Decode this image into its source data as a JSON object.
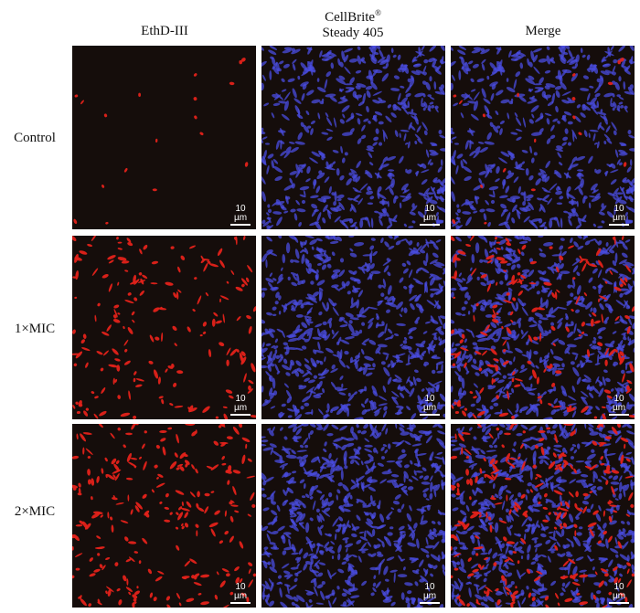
{
  "columns": [
    {
      "id": "ethd",
      "label": "EthD-III"
    },
    {
      "id": "cellbrite",
      "label_line1": "CellBrite",
      "label_sup": "®",
      "label_line2": "Steady 405"
    },
    {
      "id": "merge",
      "label": "Merge"
    }
  ],
  "rows": [
    {
      "label": "Control",
      "red_density": 18,
      "blue_density": 520
    },
    {
      "label": "1×MIC",
      "red_density": 180,
      "blue_density": 620
    },
    {
      "label": "2×MIC",
      "red_density": 240,
      "blue_density": 640
    }
  ],
  "scale_bar": "10 µm",
  "colors": {
    "background": "#150d0b",
    "red_stain": "#e3221a",
    "blue_stain": "#4a4ce0"
  }
}
